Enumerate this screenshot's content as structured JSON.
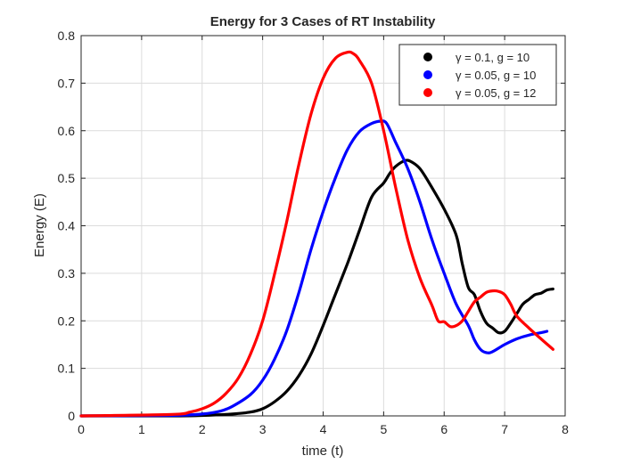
{
  "chart_data": {
    "type": "line",
    "title": "Energy for 3 Cases of RT Instability",
    "xlabel": "time (t)",
    "ylabel": "Energy (E)",
    "xlim": [
      0,
      8
    ],
    "ylim": [
      0,
      0.8
    ],
    "xticks": [
      0,
      1,
      2,
      3,
      4,
      5,
      6,
      7,
      8
    ],
    "xtick_labels": [
      "0",
      "1",
      "2",
      "3",
      "4",
      "5",
      "6",
      "7",
      "8"
    ],
    "yticks": [
      0,
      0.1,
      0.2,
      0.3,
      0.4,
      0.5,
      0.6,
      0.7,
      0.8
    ],
    "ytick_labels": [
      "0",
      "0.1",
      "0.2",
      "0.3",
      "0.4",
      "0.5",
      "0.6",
      "0.7",
      "0.8"
    ],
    "grid": true,
    "legend_position": "top-right",
    "series": [
      {
        "name": "γ = 0.1, g = 10",
        "color": "#000000",
        "points": [
          [
            0,
            0
          ],
          [
            1.5,
            0
          ],
          [
            2,
            0.001
          ],
          [
            2.5,
            0.004
          ],
          [
            2.8,
            0.008
          ],
          [
            3,
            0.015
          ],
          [
            3.2,
            0.03
          ],
          [
            3.4,
            0.052
          ],
          [
            3.6,
            0.085
          ],
          [
            3.8,
            0.13
          ],
          [
            4,
            0.19
          ],
          [
            4.2,
            0.255
          ],
          [
            4.4,
            0.32
          ],
          [
            4.6,
            0.39
          ],
          [
            4.8,
            0.46
          ],
          [
            5,
            0.49
          ],
          [
            5.1,
            0.51
          ],
          [
            5.2,
            0.525
          ],
          [
            5.35,
            0.537
          ],
          [
            5.45,
            0.535
          ],
          [
            5.6,
            0.52
          ],
          [
            5.8,
            0.48
          ],
          [
            6,
            0.435
          ],
          [
            6.2,
            0.38
          ],
          [
            6.3,
            0.32
          ],
          [
            6.4,
            0.27
          ],
          [
            6.5,
            0.255
          ],
          [
            6.6,
            0.22
          ],
          [
            6.7,
            0.195
          ],
          [
            6.8,
            0.185
          ],
          [
            6.9,
            0.175
          ],
          [
            7,
            0.178
          ],
          [
            7.1,
            0.195
          ],
          [
            7.2,
            0.215
          ],
          [
            7.3,
            0.235
          ],
          [
            7.4,
            0.245
          ],
          [
            7.5,
            0.255
          ],
          [
            7.6,
            0.258
          ],
          [
            7.7,
            0.265
          ],
          [
            7.8,
            0.267
          ]
        ]
      },
      {
        "name": "γ = 0.05, g = 10",
        "color": "#0000ff",
        "points": [
          [
            0,
            0
          ],
          [
            1.5,
            0.001
          ],
          [
            2,
            0.004
          ],
          [
            2.3,
            0.01
          ],
          [
            2.5,
            0.02
          ],
          [
            2.8,
            0.045
          ],
          [
            3,
            0.075
          ],
          [
            3.2,
            0.12
          ],
          [
            3.4,
            0.18
          ],
          [
            3.6,
            0.26
          ],
          [
            3.8,
            0.35
          ],
          [
            4,
            0.43
          ],
          [
            4.2,
            0.5
          ],
          [
            4.4,
            0.56
          ],
          [
            4.6,
            0.598
          ],
          [
            4.8,
            0.615
          ],
          [
            4.95,
            0.62
          ],
          [
            5.05,
            0.615
          ],
          [
            5.2,
            0.575
          ],
          [
            5.4,
            0.52
          ],
          [
            5.6,
            0.45
          ],
          [
            5.8,
            0.37
          ],
          [
            6,
            0.3
          ],
          [
            6.2,
            0.235
          ],
          [
            6.4,
            0.19
          ],
          [
            6.5,
            0.16
          ],
          [
            6.6,
            0.14
          ],
          [
            6.7,
            0.133
          ],
          [
            6.8,
            0.135
          ],
          [
            7,
            0.15
          ],
          [
            7.2,
            0.162
          ],
          [
            7.4,
            0.17
          ],
          [
            7.6,
            0.175
          ],
          [
            7.7,
            0.178
          ]
        ]
      },
      {
        "name": "γ = 0.05, g = 12",
        "color": "#ff0000",
        "points": [
          [
            0,
            0
          ],
          [
            1.5,
            0.003
          ],
          [
            1.8,
            0.008
          ],
          [
            2,
            0.015
          ],
          [
            2.2,
            0.027
          ],
          [
            2.4,
            0.048
          ],
          [
            2.6,
            0.08
          ],
          [
            2.8,
            0.13
          ],
          [
            3,
            0.2
          ],
          [
            3.2,
            0.3
          ],
          [
            3.4,
            0.41
          ],
          [
            3.6,
            0.53
          ],
          [
            3.8,
            0.635
          ],
          [
            4,
            0.71
          ],
          [
            4.2,
            0.752
          ],
          [
            4.4,
            0.765
          ],
          [
            4.5,
            0.762
          ],
          [
            4.6,
            0.748
          ],
          [
            4.8,
            0.7
          ],
          [
            5,
            0.6
          ],
          [
            5.2,
            0.48
          ],
          [
            5.4,
            0.37
          ],
          [
            5.6,
            0.29
          ],
          [
            5.8,
            0.232
          ],
          [
            5.9,
            0.2
          ],
          [
            6,
            0.198
          ],
          [
            6.1,
            0.188
          ],
          [
            6.2,
            0.19
          ],
          [
            6.3,
            0.2
          ],
          [
            6.4,
            0.22
          ],
          [
            6.5,
            0.24
          ],
          [
            6.6,
            0.25
          ],
          [
            6.7,
            0.26
          ],
          [
            6.8,
            0.263
          ],
          [
            6.9,
            0.262
          ],
          [
            7,
            0.255
          ],
          [
            7.1,
            0.235
          ],
          [
            7.2,
            0.21
          ],
          [
            7.4,
            0.185
          ],
          [
            7.6,
            0.162
          ],
          [
            7.8,
            0.14
          ]
        ]
      }
    ]
  }
}
